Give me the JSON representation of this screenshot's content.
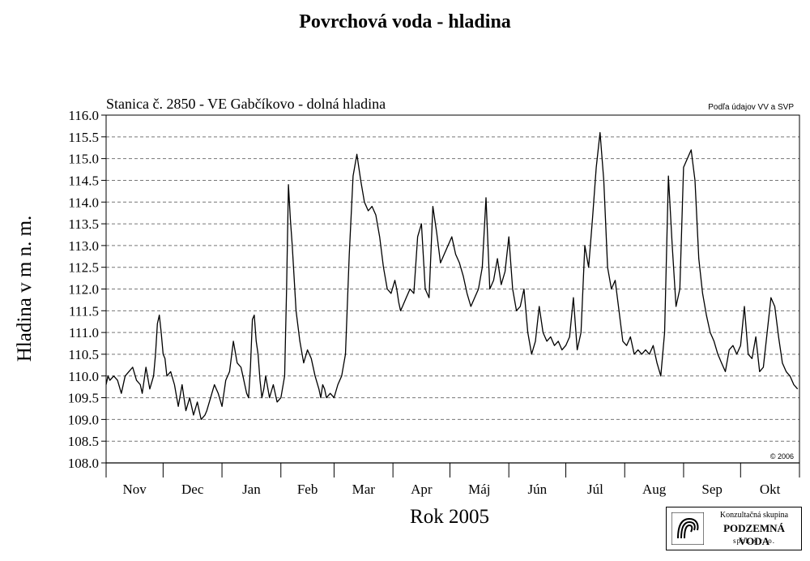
{
  "title": "Povrchová voda - hladina",
  "chart_data": {
    "type": "line",
    "subtitle": "Stanica č. 2850 - VE Gabčíkovo - dolná hladina",
    "source_note": "Podľa údajov VV a SVP",
    "copyright": "© 2006",
    "xlabel": "Rok 2005",
    "ylabel": "Hladina v m n. m.",
    "ylim": [
      108.0,
      116.0
    ],
    "ytick_step": 0.5,
    "grid": "horizontal dashed",
    "months": [
      "Nov",
      "Dec",
      "Jan",
      "Feb",
      "Mar",
      "Apr",
      "Máj",
      "Jún",
      "Júl",
      "Aug",
      "Sep",
      "Okt"
    ],
    "month_days": [
      30,
      31,
      31,
      28,
      31,
      30,
      31,
      30,
      31,
      31,
      30,
      31
    ],
    "series": [
      {
        "day_index": [
          0,
          1,
          2,
          4,
          6,
          8,
          10,
          12,
          14,
          16,
          18,
          19,
          21,
          23,
          25,
          26,
          27,
          28,
          29,
          30,
          31,
          32,
          34,
          36,
          38,
          40,
          42,
          44,
          46,
          48,
          50,
          52,
          53,
          55,
          57,
          59,
          61,
          63,
          65,
          67,
          69,
          71,
          72,
          73,
          74,
          75,
          76,
          77,
          78,
          79,
          80,
          81,
          82,
          83,
          84,
          86,
          88,
          90,
          92,
          94,
          95,
          96,
          97,
          98,
          100,
          102,
          104,
          106,
          108,
          110,
          112,
          113,
          114,
          115,
          116,
          118,
          120,
          122,
          124,
          126,
          128,
          130,
          132,
          134,
          136,
          138,
          140,
          142,
          144,
          146,
          148,
          150,
          152,
          153,
          154,
          155,
          156,
          158,
          160,
          162,
          164,
          166,
          168,
          170,
          172,
          174,
          176,
          178,
          180,
          182,
          184,
          186,
          188,
          190,
          192,
          194,
          196,
          198,
          200,
          202,
          204,
          206,
          208,
          210,
          212,
          214,
          216,
          218,
          220,
          222,
          224,
          226,
          228,
          230,
          232,
          234,
          236,
          238,
          240,
          242,
          244,
          246,
          248,
          250,
          252,
          254,
          256,
          258,
          260,
          262,
          264,
          266,
          268,
          270,
          272,
          274,
          276,
          278,
          280,
          282,
          284,
          286,
          288,
          290,
          292,
          294,
          296,
          298,
          300,
          302,
          304,
          306,
          308,
          310,
          312,
          314,
          316,
          318,
          320,
          322,
          324,
          326,
          328,
          330,
          332,
          334,
          336,
          338,
          340,
          342,
          344,
          346,
          348,
          350,
          352,
          354,
          356,
          358,
          360,
          362,
          364
        ],
        "values": [
          109.8,
          110.0,
          109.9,
          110.0,
          109.9,
          109.6,
          110.0,
          110.1,
          110.2,
          109.9,
          109.8,
          109.6,
          110.2,
          109.7,
          110.0,
          110.5,
          111.2,
          111.4,
          111.0,
          110.5,
          110.4,
          110.0,
          110.1,
          109.8,
          109.3,
          109.8,
          109.2,
          109.5,
          109.1,
          109.4,
          109.0,
          109.1,
          109.2,
          109.5,
          109.8,
          109.6,
          109.3,
          109.9,
          110.1,
          110.8,
          110.3,
          110.2,
          110.0,
          109.8,
          109.6,
          109.5,
          110.2,
          111.3,
          111.4,
          110.8,
          110.5,
          109.9,
          109.5,
          109.7,
          110.0,
          109.5,
          109.8,
          109.4,
          109.5,
          110.0,
          112.0,
          114.4,
          113.6,
          113.0,
          111.5,
          110.8,
          110.3,
          110.6,
          110.4,
          110.0,
          109.7,
          109.5,
          109.8,
          109.7,
          109.5,
          109.6,
          109.5,
          109.8,
          110.0,
          110.5,
          112.8,
          114.6,
          115.1,
          114.5,
          114.0,
          113.8,
          113.9,
          113.7,
          113.2,
          112.5,
          112.0,
          111.9,
          112.2,
          112.0,
          111.7,
          111.5,
          111.6,
          111.8,
          112.0,
          111.9,
          113.2,
          113.5,
          112.0,
          111.8,
          113.9,
          113.3,
          112.6,
          112.8,
          113.0,
          113.2,
          112.8,
          112.6,
          112.3,
          111.9,
          111.6,
          111.8,
          112.0,
          112.5,
          114.1,
          112.0,
          112.2,
          112.7,
          112.1,
          112.4,
          113.2,
          112.0,
          111.5,
          111.6,
          112.0,
          111.0,
          110.5,
          110.8,
          111.6,
          111.0,
          110.8,
          110.9,
          110.7,
          110.8,
          110.6,
          110.7,
          110.9,
          111.8,
          110.6,
          111.0,
          113.0,
          112.5,
          113.6,
          114.8,
          115.6,
          114.5,
          112.5,
          112.0,
          112.2,
          111.5,
          110.8,
          110.7,
          110.9,
          110.5,
          110.6,
          110.5,
          110.6,
          110.5,
          110.7,
          110.3,
          110.0,
          111.0,
          114.6,
          113.0,
          111.6,
          112.0,
          114.8,
          115.0,
          115.2,
          114.5,
          112.7,
          111.9,
          111.4,
          111.0,
          110.8,
          110.5,
          110.3,
          110.1,
          110.6,
          110.7,
          110.5,
          110.7,
          111.6,
          110.5,
          110.4,
          110.9,
          110.1,
          110.2,
          111.0,
          111.8,
          111.6,
          110.9,
          110.3,
          110.1,
          110.0,
          109.8,
          109.7,
          109.6,
          109.5,
          109.4,
          109.3
        ]
      }
    ]
  },
  "logo": {
    "line1": "Konzultačná skupina",
    "line2": "PODZEMNÁ VODA",
    "line3": "spol. s r. o."
  }
}
